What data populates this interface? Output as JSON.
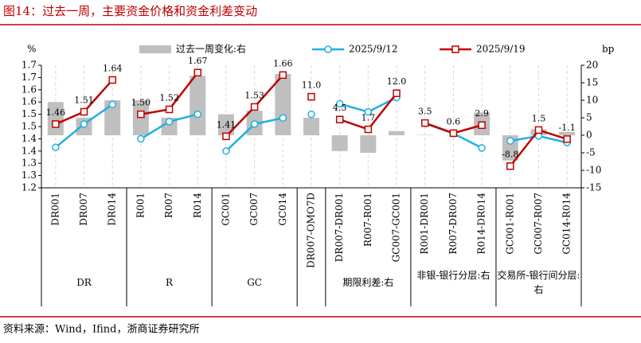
{
  "chart_data": {
    "type": "bar-line",
    "title": "图14：过去一周，主要资金价格和资金利差变动",
    "source": "资料来源：Wind，Ifind，浙商证券研究所",
    "ylabel": "%",
    "y2label": "bp",
    "groups": [
      {
        "label": "DR",
        "axis": "y",
        "categories": [
          "DR001",
          "DR007",
          "DR014"
        ]
      },
      {
        "label": "R",
        "axis": "y",
        "categories": [
          "R001",
          "R007",
          "R014"
        ]
      },
      {
        "label": "GC",
        "axis": "y",
        "categories": [
          "GC001",
          "GC007",
          "GC014"
        ]
      },
      {
        "label": null,
        "axis": "y2",
        "categories": [
          "DR007-OMO7D"
        ]
      },
      {
        "label": "期限利差:右",
        "axis": "y2",
        "categories": [
          "DR007-DR001",
          "R007-R001",
          "GC007-GC001"
        ]
      },
      {
        "label": "非银-银行分层:右",
        "axis": "y2",
        "categories": [
          "R001-DR001",
          "R007-DR007",
          "R014-DR014"
        ]
      },
      {
        "label": "交易所-银行间分层:右",
        "axis": "y2",
        "categories": [
          "GC001-R001",
          "GC007-R007",
          "GC014-R014"
        ]
      }
    ],
    "series": [
      {
        "name": "过去一周变化:右",
        "type": "bar",
        "axis": "y2",
        "color": "#bfbfbf",
        "values": [
          9.5,
          5,
          10,
          10,
          5,
          17,
          6,
          7,
          17.5,
          5,
          -4.5,
          -5,
          1.2,
          0.1,
          0.1,
          6.5,
          -7.2,
          1.7,
          1
        ]
      },
      {
        "name": "2025/9/12",
        "type": "line",
        "color": "#1fb0e0",
        "marker": "circle",
        "values": [
          1.365,
          1.46,
          1.54,
          1.4,
          1.47,
          1.5,
          1.35,
          1.46,
          1.485,
          6,
          9,
          6.7,
          10.8,
          3.4,
          0.5,
          -3.6,
          -1.6,
          -0.2,
          -2.1
        ]
      },
      {
        "name": "2025/9/19",
        "type": "line",
        "color": "#c00000",
        "marker": "square",
        "values": [
          1.46,
          1.51,
          1.64,
          1.5,
          1.52,
          1.67,
          1.41,
          1.53,
          1.66,
          11,
          4.5,
          1.7,
          12,
          3.5,
          0.6,
          2.9,
          -8.8,
          1.5,
          -1.1
        ],
        "value_labels": [
          "1.46",
          "1.51",
          "1.64",
          "1.50",
          "1.52",
          "1.67",
          "1.41",
          "1.53",
          "1.66",
          "11.0",
          "4.5",
          "1.7",
          "12.0",
          "3.5",
          "0.6",
          "2.9",
          "-8.8",
          "1.5",
          "-1.1"
        ]
      }
    ],
    "ylim": [
      1.2,
      1.7
    ],
    "yticks": [
      1.2,
      {
        "value": 1.25,
        "label": "1.3"
      },
      1.3,
      {
        "value": 1.35,
        "label": "1.4"
      },
      1.4,
      {
        "value": 1.45,
        "label": "1.5"
      },
      1.5,
      {
        "value": 1.55,
        "label": "1.6"
      },
      1.6,
      {
        "value": 1.65,
        "label": "1.7"
      },
      1.7
    ],
    "y2lim": [
      -15,
      20
    ],
    "y2ticks": [
      -15,
      -10,
      -5,
      0,
      5,
      10,
      15,
      20
    ]
  }
}
